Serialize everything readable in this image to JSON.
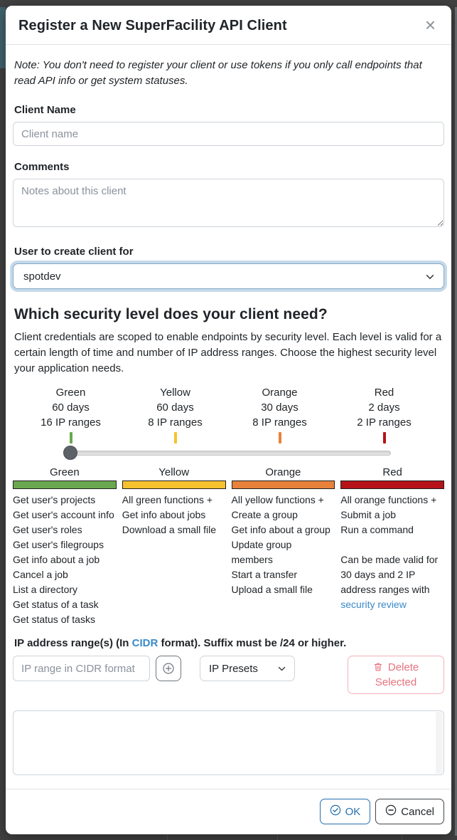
{
  "modal": {
    "title": "Register a New SuperFacility API Client",
    "close_icon": "×",
    "note": "Note: You don't need to register your client or use tokens if you only call endpoints that read API info or get system statuses."
  },
  "fields": {
    "client_name": {
      "label": "Client Name",
      "placeholder": "Client name"
    },
    "comments": {
      "label": "Comments",
      "placeholder": "Notes about this client"
    },
    "user": {
      "label": "User to create client for",
      "value": "spotdev"
    }
  },
  "security": {
    "heading": "Which security level does your client need?",
    "description": "Client credentials are scoped to enable endpoints by security level. Each level is valid for a certain length of time and number of IP address ranges. Choose the highest security level your application needs.",
    "slider_value": "Green",
    "levels": [
      {
        "name": "Green",
        "days": "60 days",
        "ranges": "16 IP ranges",
        "color": "#6aa84f",
        "functions": [
          "Get user's projects",
          "Get user's account info",
          "Get user's roles",
          "Get user's filegroups",
          "Get info about a job",
          "Cancel a job",
          "List a directory",
          "Get status of a task",
          "Get status of tasks"
        ]
      },
      {
        "name": "Yellow",
        "days": "60 days",
        "ranges": "8 IP ranges",
        "color": "#f7c12e",
        "functions": [
          "All green functions +",
          "Get info about jobs",
          "Download a small file"
        ]
      },
      {
        "name": "Orange",
        "days": "30 days",
        "ranges": "8 IP ranges",
        "color": "#e8813a",
        "functions": [
          "All yellow functions +",
          "Create a group",
          "Get info about a group",
          "Update group members",
          "Start a transfer",
          "Upload a small file"
        ]
      },
      {
        "name": "Red",
        "days": "2 days",
        "ranges": "2 IP ranges",
        "color": "#b51219",
        "functions": [
          "All orange functions +",
          "Submit a job",
          "Run a command"
        ],
        "extra": {
          "text": "Can be made valid for 30 days and 2 IP address ranges with ",
          "link": "security review"
        }
      }
    ]
  },
  "ip_section": {
    "label_prefix": "IP address range(s) (In ",
    "label_link": "CIDR",
    "label_suffix": " format). Suffix must be /24 or higher.",
    "input_placeholder": "IP range in CIDR format",
    "add_icon": "plus-circle",
    "presets_label": "IP Presets",
    "delete_icon": "trash",
    "delete_label": "Delete Selected"
  },
  "footer": {
    "ok_icon": "check-circle",
    "ok_label": "OK",
    "cancel_icon": "minus-circle",
    "cancel_label": "Cancel"
  },
  "colors": {
    "backdrop": "#414141",
    "link_blue": "#3a8ac8",
    "ok_blue": "#2470af",
    "danger_text": "#e5737f",
    "danger_border": "#f3b2ba",
    "focus_ring": "#c5d9ea"
  }
}
